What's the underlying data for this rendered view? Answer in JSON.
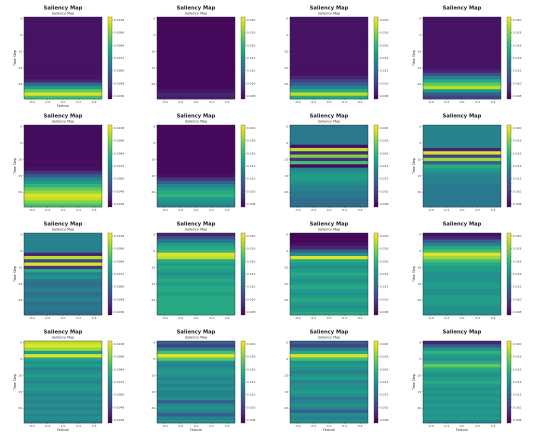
{
  "colormap": [
    "#440154",
    "#482878",
    "#3e4a89",
    "#31688e",
    "#26828e",
    "#1f9e89",
    "#35b779",
    "#6ece58",
    "#b5de2b",
    "#fde725"
  ],
  "chart_data": [
    {
      "type": "heatmap",
      "title": "Saliency Map",
      "subtitle": "Saliency Map",
      "xlabel": "Feature",
      "ylabel": "Time Step",
      "xticks": [
        "-0.4",
        "-0.2",
        "0.0",
        "0.2",
        "0.4"
      ],
      "yticks": [
        "0",
        "5",
        "10",
        "15",
        "20"
      ],
      "colorbar_ticks": [
        "0.0108",
        "0.0096",
        "0.0084",
        "0.0072",
        "0.0060",
        "0.0048",
        "0.0036"
      ],
      "rows": [
        0.05,
        0.05,
        0.05,
        0.05,
        0.05,
        0.05,
        0.05,
        0.05,
        0.05,
        0.05,
        0.05,
        0.05,
        0.05,
        0.05,
        0.05,
        0.05,
        0.05,
        0.05,
        0.05,
        0.1,
        0.35,
        0.55,
        0.75,
        0.95,
        0.7
      ]
    },
    {
      "type": "heatmap",
      "title": "Saliency Map",
      "subtitle": "Saliency Map",
      "xlabel": "",
      "ylabel": "",
      "xticks": [
        "-0.4",
        "-0.2",
        "0.0",
        "0.2",
        "0.4"
      ],
      "yticks": [
        "0",
        "5",
        "10",
        "15",
        "20"
      ],
      "colorbar_ticks": [
        "0.020",
        "0.018",
        "0.016",
        "0.014",
        "0.012",
        "0.010",
        "0.008"
      ],
      "rows": [
        0.02,
        0.02,
        0.02,
        0.02,
        0.02,
        0.02,
        0.02,
        0.02,
        0.02,
        0.02,
        0.02,
        0.02,
        0.02,
        0.02,
        0.02,
        0.02,
        0.02,
        0.02,
        0.02,
        0.02,
        0.02,
        0.02,
        0.05,
        0.1,
        0.08
      ]
    },
    {
      "type": "heatmap",
      "title": "Saliency Map",
      "subtitle": "Saliency Map",
      "xlabel": "",
      "ylabel": "",
      "xticks": [
        "-0.4",
        "-0.2",
        "0.0",
        "0.2",
        "0.4"
      ],
      "yticks": [
        "0",
        "5",
        "10",
        "15",
        "20"
      ],
      "colorbar_ticks": [
        "0.020",
        "0.018",
        "0.016",
        "0.014",
        "0.012",
        "0.010",
        "0.008"
      ],
      "rows": [
        0.05,
        0.05,
        0.05,
        0.05,
        0.05,
        0.05,
        0.05,
        0.05,
        0.05,
        0.05,
        0.05,
        0.05,
        0.05,
        0.05,
        0.05,
        0.05,
        0.05,
        0.05,
        0.1,
        0.2,
        0.3,
        0.45,
        0.6,
        0.9,
        0.6
      ]
    },
    {
      "type": "heatmap",
      "title": "Saliency Map",
      "subtitle": "",
      "xlabel": "",
      "ylabel": "Time Step",
      "xticks": [
        "-0.4",
        "-0.2",
        "0.0",
        "0.2",
        "0.4"
      ],
      "yticks": [
        "0",
        "5",
        "10",
        "15",
        "20"
      ],
      "colorbar_ticks": [
        "0.020",
        "0.018",
        "0.016",
        "0.014",
        "0.012",
        "0.010",
        "0.008"
      ],
      "rows": [
        0.05,
        0.05,
        0.05,
        0.05,
        0.05,
        0.05,
        0.05,
        0.05,
        0.05,
        0.05,
        0.05,
        0.05,
        0.05,
        0.05,
        0.05,
        0.05,
        0.1,
        0.25,
        0.45,
        0.6,
        0.75,
        0.9,
        0.55,
        0.3,
        0.2
      ]
    },
    {
      "type": "heatmap",
      "title": "Saliency Map",
      "subtitle": "Saliency Map",
      "xlabel": "",
      "ylabel": "Time Step",
      "xticks": [
        "-0.4",
        "-0.2",
        "0.0",
        "0.2",
        "0.4"
      ],
      "yticks": [
        "0",
        "5",
        "10",
        "15",
        "20"
      ],
      "colorbar_ticks": [
        "0.0108",
        "0.0096",
        "0.0084",
        "0.0072",
        "0.0060",
        "0.0048",
        "0.0036"
      ],
      "rows": [
        0.03,
        0.03,
        0.03,
        0.03,
        0.03,
        0.03,
        0.03,
        0.03,
        0.03,
        0.03,
        0.03,
        0.03,
        0.03,
        0.05,
        0.15,
        0.3,
        0.45,
        0.55,
        0.65,
        0.75,
        0.85,
        0.95,
        0.9,
        0.8,
        0.7
      ]
    },
    {
      "type": "heatmap",
      "title": "Saliency Map",
      "subtitle": "Saliency Map",
      "xlabel": "",
      "ylabel": "",
      "xticks": [
        "-0.4",
        "-0.2",
        "0.0",
        "0.2",
        "0.4"
      ],
      "yticks": [
        "0",
        "5",
        "10",
        "15",
        "20"
      ],
      "colorbar_ticks": [
        "0.020",
        "0.018",
        "0.016",
        "0.014",
        "0.012",
        "0.010",
        "0.008"
      ],
      "rows": [
        0.02,
        0.02,
        0.02,
        0.02,
        0.02,
        0.02,
        0.02,
        0.02,
        0.02,
        0.02,
        0.02,
        0.02,
        0.02,
        0.02,
        0.02,
        0.05,
        0.15,
        0.3,
        0.45,
        0.55,
        0.6,
        0.65,
        0.55,
        0.5,
        0.45
      ]
    },
    {
      "type": "heatmap",
      "title": "Saliency Map",
      "subtitle": "Saliency Map",
      "xlabel": "",
      "ylabel": "",
      "xticks": [
        "-0.4",
        "-0.2",
        "0.0",
        "0.2",
        "0.4"
      ],
      "yticks": [
        "0",
        "5",
        "10",
        "15",
        "20"
      ],
      "colorbar_ticks": [
        "0.020",
        "0.018",
        "0.016",
        "0.014",
        "0.012",
        "0.010",
        "0.008"
      ],
      "rows": [
        0.4,
        0.4,
        0.4,
        0.4,
        0.4,
        0.4,
        0.05,
        0.9,
        0.1,
        0.8,
        0.15,
        0.7,
        0.02,
        0.45,
        0.5,
        0.55,
        0.55,
        0.5,
        0.45,
        0.45,
        0.4,
        0.4,
        0.35,
        0.35,
        0.35
      ]
    },
    {
      "type": "heatmap",
      "title": "Saliency Map",
      "subtitle": "",
      "xlabel": "",
      "ylabel": "Time Step",
      "xticks": [
        "-0.4",
        "-0.2",
        "0.0",
        "0.2",
        "0.4"
      ],
      "yticks": [
        "0",
        "5",
        "10",
        "15",
        "20"
      ],
      "colorbar_ticks": [
        "0.020",
        "0.018",
        "0.016",
        "0.014",
        "0.012",
        "0.010",
        "0.008"
      ],
      "rows": [
        0.45,
        0.45,
        0.45,
        0.45,
        0.45,
        0.45,
        0.45,
        0.1,
        0.95,
        0.2,
        0.85,
        0.3,
        0.6,
        0.55,
        0.5,
        0.45,
        0.45,
        0.45,
        0.4,
        0.4,
        0.4,
        0.4,
        0.4,
        0.4,
        0.4
      ]
    },
    {
      "type": "heatmap",
      "title": "Saliency Map",
      "subtitle": "Saliency Map",
      "xlabel": "",
      "ylabel": "Time Step",
      "xticks": [
        "-0.4",
        "-0.2",
        "0.0",
        "0.2",
        "0.4"
      ],
      "yticks": [
        "0",
        "5",
        "10",
        "15",
        "20"
      ],
      "colorbar_ticks": [
        "0.0108",
        "0.0096",
        "0.0084",
        "0.0072",
        "0.0060",
        "0.0048",
        "0.0036"
      ],
      "rows": [
        0.45,
        0.45,
        0.45,
        0.45,
        0.45,
        0.45,
        0.1,
        0.9,
        0.2,
        0.95,
        0.15,
        0.6,
        0.45,
        0.5,
        0.4,
        0.35,
        0.4,
        0.45,
        0.35,
        0.4,
        0.45,
        0.35,
        0.4,
        0.4,
        0.35
      ]
    },
    {
      "type": "heatmap",
      "title": "Saliency Map",
      "subtitle": "Saliency Map",
      "xlabel": "",
      "ylabel": "",
      "xticks": [
        "-0.4",
        "-0.2",
        "0.0",
        "0.2",
        "0.4"
      ],
      "yticks": [
        "0",
        "5",
        "10",
        "15",
        "20"
      ],
      "colorbar_ticks": [
        "0.020",
        "0.018",
        "0.016",
        "0.014",
        "0.012",
        "0.010",
        "0.008"
      ],
      "rows": [
        0.1,
        0.25,
        0.4,
        0.55,
        0.6,
        0.65,
        0.95,
        0.9,
        0.6,
        0.55,
        0.6,
        0.55,
        0.5,
        0.55,
        0.6,
        0.55,
        0.6,
        0.6,
        0.55,
        0.6,
        0.6,
        0.6,
        0.6,
        0.6,
        0.6
      ]
    },
    {
      "type": "heatmap",
      "title": "Saliency Map",
      "subtitle": "Saliency Map",
      "xlabel": "",
      "ylabel": "",
      "xticks": [
        "-0.4",
        "-0.2",
        "0.0",
        "0.2",
        "0.4"
      ],
      "yticks": [
        "0",
        "5",
        "10",
        "15",
        "20"
      ],
      "colorbar_ticks": [
        "0.020",
        "0.018",
        "0.016",
        "0.014",
        "0.012",
        "0.010",
        "0.008"
      ],
      "rows": [
        0.02,
        0.02,
        0.02,
        0.05,
        0.1,
        0.3,
        0.5,
        0.95,
        0.6,
        0.55,
        0.5,
        0.55,
        0.6,
        0.55,
        0.5,
        0.55,
        0.6,
        0.55,
        0.5,
        0.55,
        0.6,
        0.55,
        0.5,
        0.55,
        0.6
      ]
    },
    {
      "type": "heatmap",
      "title": "Saliency Map",
      "subtitle": "",
      "xlabel": "",
      "ylabel": "Time Step",
      "xticks": [
        "-0.4",
        "-0.2",
        "0.0",
        "0.2",
        "0.4"
      ],
      "yticks": [
        "0",
        "5",
        "10",
        "15",
        "20"
      ],
      "colorbar_ticks": [
        "0.020",
        "0.018",
        "0.016",
        "0.014",
        "0.012",
        "0.010",
        "0.008"
      ],
      "rows": [
        0.05,
        0.1,
        0.3,
        0.45,
        0.6,
        0.7,
        0.95,
        0.85,
        0.7,
        0.6,
        0.55,
        0.55,
        0.5,
        0.5,
        0.5,
        0.55,
        0.55,
        0.5,
        0.5,
        0.55,
        0.55,
        0.55,
        0.5,
        0.5,
        0.5
      ]
    },
    {
      "type": "heatmap",
      "title": "Saliency Map",
      "subtitle": "Saliency Map",
      "xlabel": "Feature",
      "ylabel": "Time Step",
      "xticks": [
        "-0.4",
        "-0.2",
        "0.0",
        "0.2",
        "0.4"
      ],
      "yticks": [
        "0",
        "5",
        "10",
        "15",
        "20"
      ],
      "colorbar_ticks": [
        "0.0108",
        "0.0096",
        "0.0084",
        "0.0072",
        "0.0060",
        "0.0048",
        "0.0036"
      ],
      "rows": [
        0.9,
        0.95,
        0.85,
        0.55,
        0.95,
        0.6,
        0.5,
        0.55,
        0.45,
        0.5,
        0.55,
        0.5,
        0.45,
        0.5,
        0.55,
        0.5,
        0.45,
        0.5,
        0.45,
        0.5,
        0.45,
        0.5,
        0.45,
        0.5,
        0.45
      ]
    },
    {
      "type": "heatmap",
      "title": "Saliency Map",
      "subtitle": "Saliency Map",
      "xlabel": "Feature",
      "ylabel": "",
      "xticks": [
        "-0.4",
        "-0.2",
        "0.0",
        "0.2",
        "0.4"
      ],
      "yticks": [
        "0",
        "5",
        "10",
        "15",
        "20"
      ],
      "colorbar_ticks": [
        "0.020",
        "0.018",
        "0.016",
        "0.014",
        "0.012",
        "0.010",
        "0.008"
      ],
      "rows": [
        0.3,
        0.2,
        0.45,
        0.7,
        0.95,
        0.75,
        0.5,
        0.45,
        0.5,
        0.55,
        0.5,
        0.45,
        0.5,
        0.45,
        0.5,
        0.45,
        0.45,
        0.5,
        0.3,
        0.45,
        0.5,
        0.45,
        0.3,
        0.45,
        0.5
      ]
    },
    {
      "type": "heatmap",
      "title": "Saliency Map",
      "subtitle": "Saliency Map",
      "xlabel": "Feature",
      "ylabel": "",
      "xticks": [
        "-0.4",
        "-0.2",
        "0.0",
        "0.2",
        "0.4"
      ],
      "yticks": [
        "0",
        "5",
        "10",
        "15",
        "20"
      ],
      "colorbar_ticks": [
        "0.020",
        "0.018",
        "0.016",
        "0.014",
        "0.012",
        "0.010",
        "0.008"
      ],
      "rows": [
        0.3,
        0.2,
        0.45,
        0.6,
        0.95,
        0.7,
        0.5,
        0.55,
        0.5,
        0.45,
        0.5,
        0.55,
        0.45,
        0.5,
        0.5,
        0.55,
        0.5,
        0.4,
        0.45,
        0.5,
        0.45,
        0.3,
        0.5,
        0.45,
        0.5
      ]
    },
    {
      "type": "heatmap",
      "title": "Saliency Map",
      "subtitle": "",
      "xlabel": "Feature",
      "ylabel": "Time Step",
      "xticks": [
        "-0.4",
        "-0.2",
        "0.0",
        "0.2",
        "0.4"
      ],
      "yticks": [
        "0",
        "5",
        "10",
        "15",
        "20"
      ],
      "colorbar_ticks": [
        "0.020",
        "0.018",
        "0.016",
        "0.014",
        "0.012",
        "0.010",
        "0.008"
      ],
      "rows": [
        0.1,
        0.3,
        0.5,
        0.65,
        0.55,
        0.5,
        0.6,
        0.75,
        0.6,
        0.55,
        0.5,
        0.55,
        0.6,
        0.55,
        0.5,
        0.55,
        0.5,
        0.55,
        0.5,
        0.55,
        0.5,
        0.55,
        0.5,
        0.55,
        0.45
      ]
    }
  ]
}
